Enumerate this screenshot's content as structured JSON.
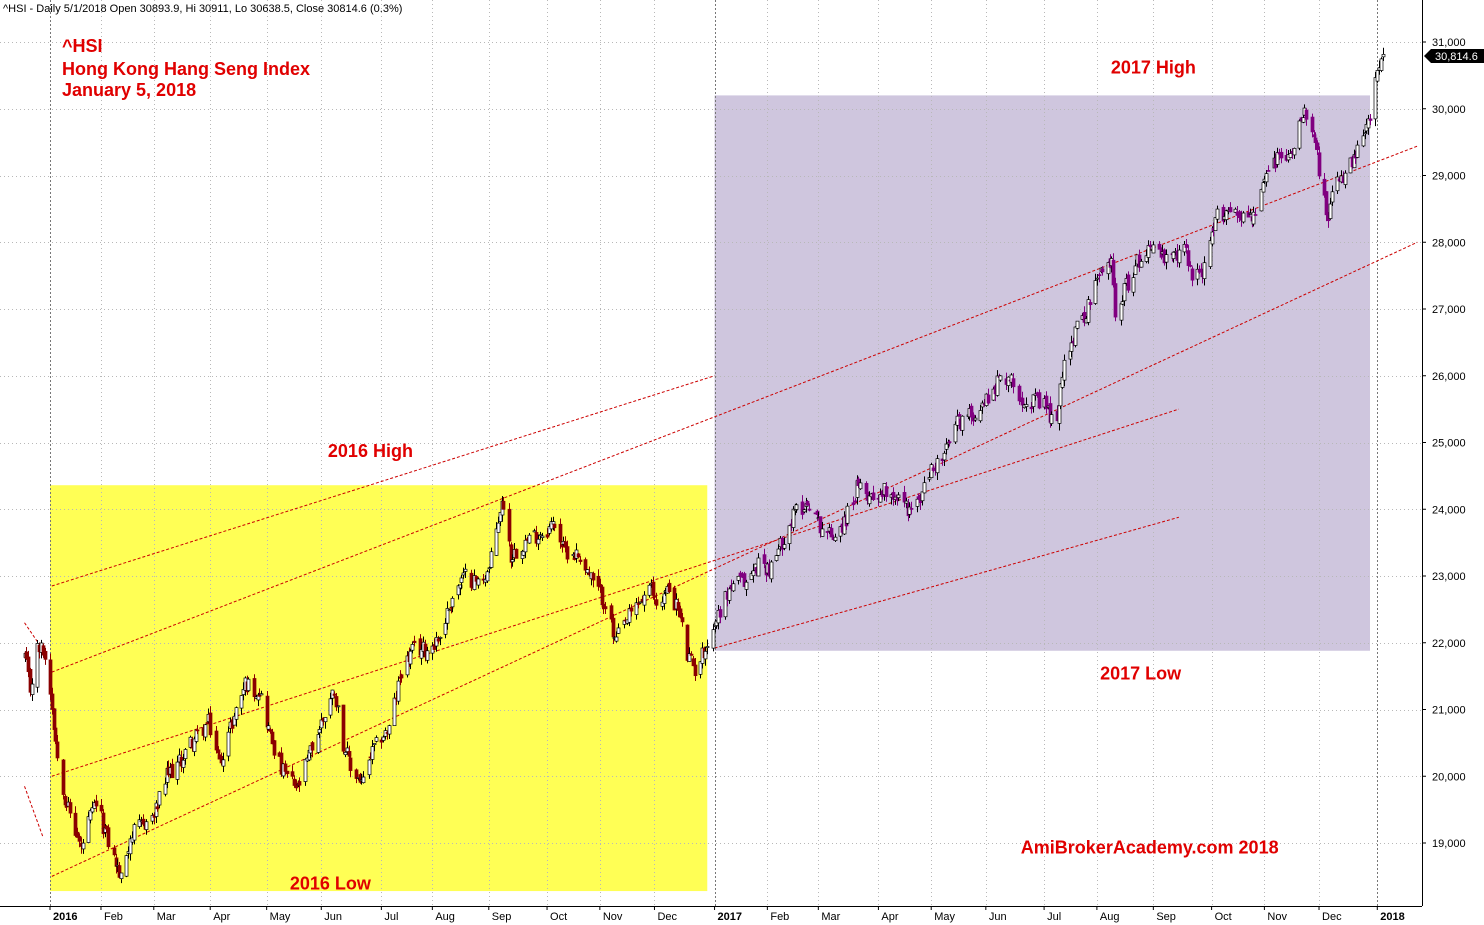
{
  "header": "^HSI - Daily 5/1/2018 Open 30893.9, Hi 30911, Lo 30638.5, Close 30814.6 (0.3%)",
  "title_lines": [
    "^HSI",
    "Hong Kong Hang Seng Index",
    "January 5, 2018"
  ],
  "last_value_label": "30,814.6",
  "colors": {
    "up_candle": "#ffffff",
    "down_2016": "#8b0000",
    "down_2017": "#800080",
    "box_2016": "#ffff55",
    "box_2017": "#cfc6de",
    "annotation": "#e00000",
    "channel": "#cc0000",
    "grid": "#b8b8b8"
  },
  "chart_data": {
    "type": "candlestick",
    "title": "",
    "xlabel": "",
    "ylabel": "",
    "ylim": [
      18300,
      31500
    ],
    "yticks": [
      {
        "value": 19000,
        "label": "19,000"
      },
      {
        "value": 20000,
        "label": "20,000"
      },
      {
        "value": 21000,
        "label": "21,000"
      },
      {
        "value": 22000,
        "label": "22,000"
      },
      {
        "value": 23000,
        "label": "23,000"
      },
      {
        "value": 24000,
        "label": "24,000"
      },
      {
        "value": 25000,
        "label": "25,000"
      },
      {
        "value": 26000,
        "label": "26,000"
      },
      {
        "value": 27000,
        "label": "27,000"
      },
      {
        "value": 28000,
        "label": "28,000"
      },
      {
        "value": 29000,
        "label": "29,000"
      },
      {
        "value": 30000,
        "label": "30,000"
      },
      {
        "value": 31000,
        "label": "31,000"
      }
    ],
    "xticks": [
      {
        "label": "2016",
        "bold": true,
        "date": "2016-01-04"
      },
      {
        "label": "Feb",
        "bold": false,
        "date": "2016-02-01"
      },
      {
        "label": "Mar",
        "bold": false,
        "date": "2016-03-01"
      },
      {
        "label": "Apr",
        "bold": false,
        "date": "2016-04-01"
      },
      {
        "label": "May",
        "bold": false,
        "date": "2016-05-02"
      },
      {
        "label": "Jun",
        "bold": false,
        "date": "2016-06-01"
      },
      {
        "label": "Jul",
        "bold": false,
        "date": "2016-07-04"
      },
      {
        "label": "Aug",
        "bold": false,
        "date": "2016-08-01"
      },
      {
        "label": "Sep",
        "bold": false,
        "date": "2016-09-01"
      },
      {
        "label": "Oct",
        "bold": false,
        "date": "2016-10-03"
      },
      {
        "label": "Nov",
        "bold": false,
        "date": "2016-11-01"
      },
      {
        "label": "Dec",
        "bold": false,
        "date": "2016-12-01"
      },
      {
        "label": "2017",
        "bold": true,
        "date": "2017-01-03"
      },
      {
        "label": "Feb",
        "bold": false,
        "date": "2017-02-01"
      },
      {
        "label": "Mar",
        "bold": false,
        "date": "2017-03-01"
      },
      {
        "label": "Apr",
        "bold": false,
        "date": "2017-04-03"
      },
      {
        "label": "May",
        "bold": false,
        "date": "2017-05-02"
      },
      {
        "label": "Jun",
        "bold": false,
        "date": "2017-06-01"
      },
      {
        "label": "Jul",
        "bold": false,
        "date": "2017-07-03"
      },
      {
        "label": "Aug",
        "bold": false,
        "date": "2017-08-01"
      },
      {
        "label": "Sep",
        "bold": false,
        "date": "2017-09-01"
      },
      {
        "label": "Oct",
        "bold": false,
        "date": "2017-10-03"
      },
      {
        "label": "Nov",
        "bold": false,
        "date": "2017-11-01"
      },
      {
        "label": "Dec",
        "bold": false,
        "date": "2017-12-01"
      },
      {
        "label": "2018",
        "bold": true,
        "date": "2018-01-02"
      }
    ],
    "price_path": [
      {
        "date": "2015-12-21",
        "close": 21800
      },
      {
        "date": "2015-12-24",
        "close": 21300
      },
      {
        "date": "2015-12-28",
        "close": 21900
      },
      {
        "date": "2015-12-31",
        "close": 21900
      },
      {
        "date": "2016-01-04",
        "close": 21300
      },
      {
        "date": "2016-01-08",
        "close": 20300
      },
      {
        "date": "2016-01-12",
        "close": 19700
      },
      {
        "date": "2016-01-21",
        "close": 18900
      },
      {
        "date": "2016-01-25",
        "close": 19300
      },
      {
        "date": "2016-01-29",
        "close": 19600
      },
      {
        "date": "2016-02-04",
        "close": 19100
      },
      {
        "date": "2016-02-12",
        "close": 18450
      },
      {
        "date": "2016-02-17",
        "close": 19100
      },
      {
        "date": "2016-02-25",
        "close": 19300
      },
      {
        "date": "2016-03-01",
        "close": 19400
      },
      {
        "date": "2016-03-08",
        "close": 20000
      },
      {
        "date": "2016-03-15",
        "close": 20200
      },
      {
        "date": "2016-03-21",
        "close": 20500
      },
      {
        "date": "2016-03-31",
        "close": 20800
      },
      {
        "date": "2016-04-06",
        "close": 20200
      },
      {
        "date": "2016-04-14",
        "close": 20900
      },
      {
        "date": "2016-04-20",
        "close": 21400
      },
      {
        "date": "2016-04-25",
        "close": 21300
      },
      {
        "date": "2016-04-28",
        "close": 21300
      },
      {
        "date": "2016-05-04",
        "close": 20600
      },
      {
        "date": "2016-05-10",
        "close": 20100
      },
      {
        "date": "2016-05-19",
        "close": 19800
      },
      {
        "date": "2016-05-25",
        "close": 20300
      },
      {
        "date": "2016-06-01",
        "close": 20800
      },
      {
        "date": "2016-06-08",
        "close": 21300
      },
      {
        "date": "2016-06-13",
        "close": 20500
      },
      {
        "date": "2016-06-17",
        "close": 20100
      },
      {
        "date": "2016-06-24",
        "close": 19900
      },
      {
        "date": "2016-06-28",
        "close": 20300
      },
      {
        "date": "2016-07-04",
        "close": 20600
      },
      {
        "date": "2016-07-08",
        "close": 20700
      },
      {
        "date": "2016-07-15",
        "close": 21600
      },
      {
        "date": "2016-07-22",
        "close": 21900
      },
      {
        "date": "2016-07-29",
        "close": 21900
      },
      {
        "date": "2016-08-05",
        "close": 22100
      },
      {
        "date": "2016-08-12",
        "close": 22700
      },
      {
        "date": "2016-08-19",
        "close": 23000
      },
      {
        "date": "2016-08-26",
        "close": 22900
      },
      {
        "date": "2016-09-01",
        "close": 23100
      },
      {
        "date": "2016-09-07",
        "close": 24000
      },
      {
        "date": "2016-09-09",
        "close": 24100
      },
      {
        "date": "2016-09-13",
        "close": 23300
      },
      {
        "date": "2016-09-20",
        "close": 23500
      },
      {
        "date": "2016-09-26",
        "close": 23600
      },
      {
        "date": "2016-10-03",
        "close": 23700
      },
      {
        "date": "2016-10-07",
        "close": 23800
      },
      {
        "date": "2016-10-12",
        "close": 23400
      },
      {
        "date": "2016-10-21",
        "close": 23300
      },
      {
        "date": "2016-10-28",
        "close": 22900
      },
      {
        "date": "2016-11-04",
        "close": 22600
      },
      {
        "date": "2016-11-09",
        "close": 22000
      },
      {
        "date": "2016-11-15",
        "close": 22300
      },
      {
        "date": "2016-11-22",
        "close": 22600
      },
      {
        "date": "2016-11-29",
        "close": 22800
      },
      {
        "date": "2016-12-02",
        "close": 22600
      },
      {
        "date": "2016-12-09",
        "close": 22800
      },
      {
        "date": "2016-12-14",
        "close": 22500
      },
      {
        "date": "2016-12-19",
        "close": 21800
      },
      {
        "date": "2016-12-23",
        "close": 21600
      },
      {
        "date": "2016-12-30",
        "close": 22000
      },
      {
        "date": "2017-01-06",
        "close": 22500
      },
      {
        "date": "2017-01-13",
        "close": 22900
      },
      {
        "date": "2017-01-20",
        "close": 22900
      },
      {
        "date": "2017-01-27",
        "close": 23200
      },
      {
        "date": "2017-02-03",
        "close": 23100
      },
      {
        "date": "2017-02-10",
        "close": 23600
      },
      {
        "date": "2017-02-17",
        "close": 24000
      },
      {
        "date": "2017-02-24",
        "close": 24100
      },
      {
        "date": "2017-03-01",
        "close": 23800
      },
      {
        "date": "2017-03-08",
        "close": 23600
      },
      {
        "date": "2017-03-15",
        "close": 23800
      },
      {
        "date": "2017-03-22",
        "close": 24300
      },
      {
        "date": "2017-03-31",
        "close": 24200
      },
      {
        "date": "2017-04-07",
        "close": 24300
      },
      {
        "date": "2017-04-13",
        "close": 24200
      },
      {
        "date": "2017-04-20",
        "close": 24000
      },
      {
        "date": "2017-04-25",
        "close": 24100
      },
      {
        "date": "2017-05-02",
        "close": 24600
      },
      {
        "date": "2017-05-09",
        "close": 24800
      },
      {
        "date": "2017-05-16",
        "close": 25300
      },
      {
        "date": "2017-05-23",
        "close": 25400
      },
      {
        "date": "2017-05-31",
        "close": 25600
      },
      {
        "date": "2017-06-07",
        "close": 25900
      },
      {
        "date": "2017-06-13",
        "close": 26000
      },
      {
        "date": "2017-06-20",
        "close": 25700
      },
      {
        "date": "2017-06-28",
        "close": 25600
      },
      {
        "date": "2017-07-05",
        "close": 25500
      },
      {
        "date": "2017-07-07",
        "close": 25300
      },
      {
        "date": "2017-07-11",
        "close": 25500
      },
      {
        "date": "2017-07-14",
        "close": 26300
      },
      {
        "date": "2017-07-21",
        "close": 26700
      },
      {
        "date": "2017-07-28",
        "close": 27100
      },
      {
        "date": "2017-08-02",
        "close": 27500
      },
      {
        "date": "2017-08-09",
        "close": 27700
      },
      {
        "date": "2017-08-11",
        "close": 27000
      },
      {
        "date": "2017-08-18",
        "close": 27400
      },
      {
        "date": "2017-08-25",
        "close": 27800
      },
      {
        "date": "2017-09-01",
        "close": 28000
      },
      {
        "date": "2017-09-08",
        "close": 27700
      },
      {
        "date": "2017-09-15",
        "close": 27800
      },
      {
        "date": "2017-09-19",
        "close": 27900
      },
      {
        "date": "2017-09-22",
        "close": 27500
      },
      {
        "date": "2017-09-29",
        "close": 27600
      },
      {
        "date": "2017-10-06",
        "close": 28400
      },
      {
        "date": "2017-10-13",
        "close": 28500
      },
      {
        "date": "2017-10-20",
        "close": 28400
      },
      {
        "date": "2017-10-27",
        "close": 28400
      },
      {
        "date": "2017-11-03",
        "close": 29100
      },
      {
        "date": "2017-11-10",
        "close": 29300
      },
      {
        "date": "2017-11-16",
        "close": 29300
      },
      {
        "date": "2017-11-20",
        "close": 29900
      },
      {
        "date": "2017-11-23",
        "close": 30000
      },
      {
        "date": "2017-11-28",
        "close": 29700
      },
      {
        "date": "2017-12-01",
        "close": 29100
      },
      {
        "date": "2017-12-06",
        "close": 28300
      },
      {
        "date": "2017-12-08",
        "close": 28700
      },
      {
        "date": "2017-12-14",
        "close": 29000
      },
      {
        "date": "2017-12-20",
        "close": 29200
      },
      {
        "date": "2017-12-27",
        "close": 29700
      },
      {
        "date": "2017-12-29",
        "close": 29900
      },
      {
        "date": "2018-01-02",
        "close": 30500
      },
      {
        "date": "2018-01-05",
        "close": 30815
      }
    ],
    "regions": [
      {
        "label": "2016",
        "x_start": "2016-01-04",
        "x_end": "2016-12-30",
        "y_low": 18280,
        "y_high": 24360,
        "color": "#ffff55"
      },
      {
        "label": "2017",
        "x_start": "2017-01-03",
        "x_end": "2017-12-29",
        "y_low": 21880,
        "y_high": 30200,
        "color": "#cfc6de"
      }
    ],
    "channel_lines": [
      {
        "x1": "2016-01-05",
        "y1": 22850,
        "x2": "2017-01-03",
        "y2": 26000
      },
      {
        "x1": "2016-01-05",
        "y1": 21560,
        "x2": "2018-01-24",
        "y2": 29440
      },
      {
        "x1": "2016-01-05",
        "y1": 20000,
        "x2": "2017-09-15",
        "y2": 25500
      },
      {
        "x1": "2016-01-05",
        "y1": 18500,
        "x2": "2018-01-24",
        "y2": 28000
      },
      {
        "x1": "2017-01-03",
        "y1": 21920,
        "x2": "2017-09-15",
        "y2": 23880
      },
      {
        "x1": "2015-12-21",
        "y1": 22300,
        "x2": "2015-12-31",
        "y2": 21900
      },
      {
        "x1": "2015-12-21",
        "y1": 19850,
        "x2": "2015-12-31",
        "y2": 19100
      }
    ],
    "annotations": [
      {
        "text": "2016 High",
        "date": "2016-06-28",
        "value": 24780
      },
      {
        "text": "2016 Low",
        "date": "2016-06-06",
        "value": 18300
      },
      {
        "text": "2017 High",
        "date": "2017-09-01",
        "value": 30530
      },
      {
        "text": "2017 Low",
        "date": "2017-08-25",
        "value": 21450
      },
      {
        "text": "AmiBrokerAcademy.com  2018",
        "date": "2017-08-30",
        "value": 18840
      }
    ],
    "last_close": 30814.6,
    "grid": true
  }
}
